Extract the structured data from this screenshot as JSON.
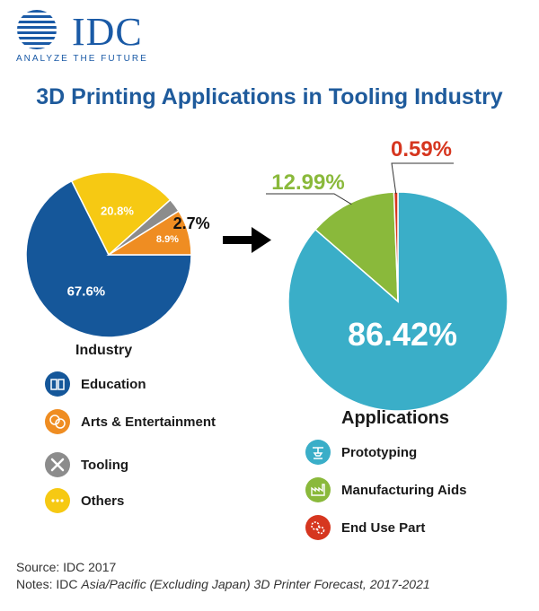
{
  "logo": {
    "name": "IDC",
    "tagline": "ANALYZE THE FUTURE"
  },
  "title": "3D Printing Applications in Tooling Industry",
  "chart_data": [
    {
      "type": "pie",
      "title": "Industry",
      "slices": [
        {
          "label": "Education",
          "value": 67.6,
          "display": "67.6%",
          "color": "#15579a"
        },
        {
          "label": "Others",
          "value": 20.8,
          "display": "20.8%",
          "color": "#f6c913"
        },
        {
          "label": "Tooling",
          "value": 2.7,
          "display": "2.7%",
          "color": "#8c8c8c"
        },
        {
          "label": "Arts & Entertainment",
          "value": 8.9,
          "display": "8.9%",
          "color": "#ef8d22"
        }
      ]
    },
    {
      "type": "pie",
      "title": "Applications",
      "slices": [
        {
          "label": "Prototyping",
          "value": 86.42,
          "display": "86.42%",
          "color": "#3aaec8"
        },
        {
          "label": "Manufacturing Aids",
          "value": 12.99,
          "display": "12.99%",
          "color": "#8ab93b"
        },
        {
          "label": "End Use Part",
          "value": 0.59,
          "display": "0.59%",
          "color": "#d6361f"
        }
      ]
    }
  ],
  "legend_industry": [
    {
      "label": "Education",
      "icon": "book-icon",
      "color": "#15579a"
    },
    {
      "label": "Arts & Entertainment",
      "icon": "theater-masks-icon",
      "color": "#ef8d22"
    },
    {
      "label": "Tooling",
      "icon": "tools-icon",
      "color": "#8c8c8c"
    },
    {
      "label": "Others",
      "icon": "ellipsis-icon",
      "color": "#f6c913"
    }
  ],
  "legend_applications": [
    {
      "label": "Prototyping",
      "icon": "3d-printer-icon",
      "color": "#3aaec8"
    },
    {
      "label": "Manufacturing Aids",
      "icon": "factory-icon",
      "color": "#8ab93b"
    },
    {
      "label": "End Use Part",
      "icon": "gears-icon",
      "color": "#d6361f"
    }
  ],
  "source": {
    "line1": "Source: IDC 2017",
    "notes_prefix": "Notes: IDC ",
    "notes_italic": "Asia/Pacific (Excluding Japan) 3D Printer Forecast, 2017-2021"
  }
}
